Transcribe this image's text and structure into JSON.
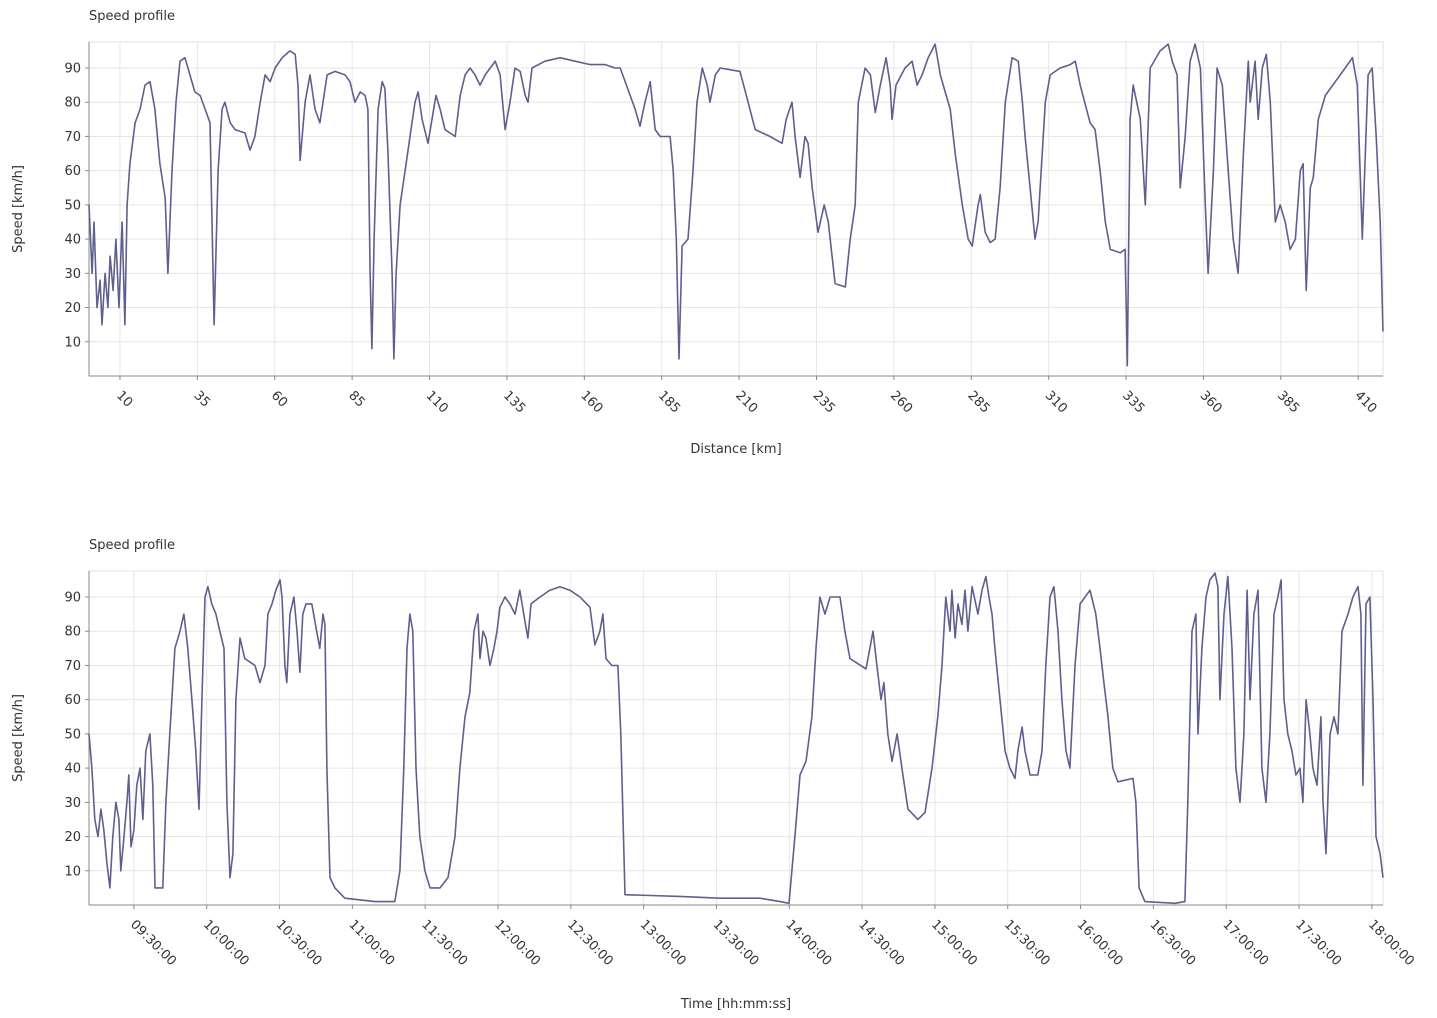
{
  "chart_data": [
    {
      "type": "line",
      "title": "Speed profile",
      "x_label": "Distance [km]",
      "y_label": "Speed [km/h]",
      "color": "#5f5f8f",
      "grid": true,
      "xlim": [
        0,
        418
      ],
      "ylim": [
        0,
        97.6
      ],
      "xticks": [
        10,
        35,
        60,
        85,
        110,
        135,
        160,
        185,
        210,
        235,
        260,
        285,
        310,
        335,
        360,
        385,
        410
      ],
      "yticks": [
        10,
        20,
        30,
        40,
        50,
        60,
        70,
        80,
        90
      ],
      "x": [
        0,
        1.0,
        1.6,
        2.6,
        3.6,
        4.2,
        5.2,
        6.1,
        6.8,
        7.8,
        8.7,
        9.7,
        10.7,
        11.6,
        12.3,
        13.2,
        14.9,
        16.5,
        18.1,
        19.7,
        21.3,
        22.9,
        24.6,
        25.5,
        26.8,
        28.1,
        29.4,
        31.0,
        32.6,
        34.2,
        35.9,
        37.5,
        39.1,
        40.4,
        41.7,
        43.0,
        43.9,
        45.6,
        47.2,
        50.4,
        52.0,
        53.6,
        55.3,
        56.9,
        58.5,
        60.1,
        62.4,
        64.9,
        66.6,
        67.5,
        68.2,
        69.8,
        71.4,
        73.0,
        74.6,
        76.9,
        79.5,
        82.7,
        84.3,
        85.9,
        87.6,
        89.2,
        90.1,
        90.8,
        91.4,
        92.1,
        93.4,
        94.7,
        95.6,
        96.6,
        97.9,
        98.5,
        99.2,
        100.5,
        102.1,
        103.7,
        105.3,
        106.3,
        107.6,
        109.5,
        110.8,
        112.1,
        113.4,
        115.0,
        118.3,
        119.9,
        121.5,
        123.1,
        124.7,
        126.3,
        128.0,
        129.6,
        131.2,
        132.8,
        134.4,
        136.0,
        137.6,
        139.3,
        140.9,
        141.8,
        143.1,
        147.3,
        152.2,
        157.0,
        161.9,
        166.7,
        169.9,
        171.6,
        176.4,
        178.0,
        179.6,
        181.3,
        182.9,
        184.5,
        187.7,
        188.7,
        189.7,
        190.6,
        191.6,
        193.5,
        195.1,
        196.4,
        198.1,
        199.7,
        200.6,
        202.3,
        203.9,
        210.3,
        212.9,
        215.2,
        220.0,
        223.9,
        225.2,
        227.1,
        228.1,
        229.7,
        231.3,
        232.3,
        233.6,
        235.5,
        237.5,
        238.8,
        241.0,
        244.3,
        245.9,
        247.5,
        248.5,
        250.7,
        252.4,
        254.0,
        255.6,
        257.5,
        258.8,
        259.4,
        260.7,
        263.6,
        265.9,
        267.5,
        269.1,
        271.1,
        273.3,
        275.0,
        276.9,
        278.2,
        279.8,
        282.1,
        284.0,
        285.3,
        287.2,
        287.9,
        289.5,
        291.1,
        292.7,
        294.3,
        296.0,
        298.2,
        300.2,
        301.5,
        302.4,
        304.0,
        305.6,
        306.6,
        308.9,
        310.5,
        313.7,
        317.0,
        318.6,
        320.2,
        323.4,
        325.0,
        326.6,
        328.3,
        329.9,
        333.1,
        334.7,
        335.4,
        336.3,
        337.3,
        339.6,
        341.2,
        342.8,
        346.0,
        348.6,
        349.9,
        351.5,
        352.5,
        354.1,
        355.7,
        357.3,
        359.0,
        360.6,
        361.5,
        363.2,
        364.4,
        366.1,
        368.0,
        369.6,
        371.2,
        372.9,
        374.5,
        375.1,
        376.7,
        377.7,
        379.0,
        380.3,
        381.6,
        383.2,
        384.8,
        386.4,
        388.0,
        389.7,
        391.3,
        392.2,
        393.2,
        394.5,
        395.5,
        397.1,
        399.4,
        402.6,
        405.8,
        408.1,
        409.7,
        411.3,
        413.2,
        414.5,
        415.8,
        417.1,
        418
      ],
      "values": [
        50,
        30,
        45,
        20,
        28,
        15,
        30,
        20,
        35,
        25,
        40,
        20,
        45,
        15,
        50,
        62,
        74,
        78,
        85,
        86,
        78,
        62,
        52,
        30,
        60,
        80,
        92,
        93,
        88,
        83,
        82,
        78,
        74,
        15,
        60,
        78,
        80,
        74,
        72,
        71,
        66,
        70,
        80,
        88,
        86,
        90,
        93,
        95,
        94,
        85,
        63,
        80,
        88,
        78,
        74,
        88,
        89,
        88,
        86,
        80,
        83,
        82,
        78,
        30,
        8,
        40,
        78,
        86,
        84,
        65,
        30,
        5,
        30,
        50,
        60,
        70,
        80,
        83,
        75,
        68,
        75,
        82,
        78,
        72,
        70,
        82,
        88,
        90,
        88,
        85,
        88,
        90,
        92,
        88,
        72,
        80,
        90,
        89,
        82,
        80,
        90,
        92,
        93,
        92,
        91,
        91,
        90,
        90,
        78,
        73,
        80,
        86,
        72,
        70,
        70,
        60,
        40,
        5,
        38,
        40,
        60,
        80,
        90,
        85,
        80,
        88,
        90,
        89,
        80,
        72,
        70,
        68,
        75,
        80,
        70,
        58,
        70,
        68,
        55,
        42,
        50,
        45,
        27,
        26,
        40,
        50,
        80,
        90,
        88,
        77,
        85,
        93,
        85,
        75,
        85,
        90,
        92,
        85,
        88,
        93,
        97,
        88,
        82,
        78,
        65,
        50,
        40,
        38,
        50,
        53,
        42,
        39,
        40,
        55,
        80,
        93,
        92,
        80,
        70,
        55,
        40,
        45,
        80,
        88,
        90,
        91,
        92,
        85,
        74,
        72,
        60,
        45,
        37,
        36,
        37,
        3,
        75,
        85,
        75,
        50,
        90,
        95,
        97,
        92,
        88,
        55,
        70,
        92,
        97,
        90,
        50,
        30,
        60,
        90,
        85,
        60,
        40,
        30,
        65,
        92,
        80,
        92,
        75,
        90,
        94,
        80,
        45,
        50,
        45,
        37,
        40,
        60,
        62,
        25,
        55,
        58,
        75,
        82,
        86,
        90,
        93,
        85,
        40,
        88,
        90,
        70,
        45,
        13
      ]
    },
    {
      "type": "line",
      "title": "Speed profile",
      "x_label": "Time  [hh:mm:ss]",
      "y_label": "Speed [km/h]",
      "color": "#5f5f8f",
      "grid": true,
      "xlim": [
        "09:11:30",
        "18:04:36"
      ],
      "ylim": [
        0,
        97.6
      ],
      "xticks": [
        "09:30:00",
        "10:00:00",
        "10:30:00",
        "11:00:00",
        "11:30:00",
        "12:00:00",
        "12:30:00",
        "13:00:00",
        "13:30:00",
        "14:00:00",
        "14:30:00",
        "15:00:00",
        "15:30:00",
        "16:00:00",
        "16:30:00",
        "17:00:00",
        "17:30:00",
        "18:00:00"
      ],
      "yticks": [
        10,
        20,
        30,
        40,
        50,
        60,
        70,
        80,
        90
      ],
      "x": [
        "09:11:30",
        "09:12:42",
        "09:13:54",
        "09:15:12",
        "09:16:24",
        "09:17:36",
        "09:18:54",
        "09:20:06",
        "09:21:18",
        "09:22:36",
        "09:23:48",
        "09:24:36",
        "09:25:54",
        "09:27:06",
        "09:27:54",
        "09:28:48",
        "09:30:00",
        "09:31:12",
        "09:32:30",
        "09:33:42",
        "09:34:54",
        "09:36:36",
        "09:37:48",
        "09:38:42",
        "09:41:54",
        "09:43:12",
        "09:44:48",
        "09:46:54",
        "09:49:00",
        "09:50:36",
        "09:52:12",
        "09:53:54",
        "09:55:30",
        "09:56:48",
        "09:58:00",
        "09:59:18",
        "10:00:30",
        "10:02:06",
        "10:03:48",
        "10:05:24",
        "10:07:06",
        "10:08:18",
        "10:09:36",
        "10:10:48",
        "10:12:00",
        "10:13:42",
        "10:15:42",
        "10:19:54",
        "10:21:54",
        "10:24:00",
        "10:25:12",
        "10:26:54",
        "10:28:30",
        "10:30:12",
        "10:31:00",
        "10:32:12",
        "10:33:00",
        "10:34:18",
        "10:35:54",
        "10:37:12",
        "10:38:24",
        "10:39:36",
        "10:40:54",
        "10:43:18",
        "10:45:48",
        "10:46:36",
        "10:47:54",
        "10:48:42",
        "10:49:30",
        "10:50:48",
        "10:52:48",
        "10:56:54",
        "11:09:18",
        "11:17:30",
        "11:19:36",
        "11:21:12",
        "11:22:30",
        "11:23:42",
        "11:24:54",
        "11:26:12",
        "11:27:48",
        "11:29:54",
        "11:32:00",
        "11:36:06",
        "11:39:24",
        "11:42:18",
        "11:44:18",
        "11:46:24",
        "11:48:24",
        "11:50:06",
        "11:51:42",
        "11:52:36",
        "11:53:48",
        "11:55:00",
        "11:56:42",
        "11:58:18",
        "11:59:36",
        "12:00:48",
        "12:02:54",
        "12:04:54",
        "12:07:00",
        "12:09:00",
        "12:11:06",
        "12:12:18",
        "12:13:36",
        "12:17:18",
        "12:21:24",
        "12:25:30",
        "12:29:36",
        "12:33:48",
        "12:37:54",
        "12:39:54",
        "12:42:00",
        "12:43:12",
        "12:44:30",
        "12:46:54",
        "12:49:24",
        "12:50:36",
        "12:52:18",
        "13:14:54",
        "13:31:24",
        "13:47:54",
        "13:56:12",
        "13:59:54",
        "14:02:18",
        "14:04:24",
        "14:06:54",
        "14:09:18",
        "14:11:00",
        "14:12:36",
        "14:14:42",
        "14:16:48",
        "14:20:54",
        "14:22:54",
        "14:25:00",
        "14:31:36",
        "14:33:12",
        "14:34:30",
        "14:36:06",
        "14:37:48",
        "14:39:00",
        "14:40:36",
        "14:42:18",
        "14:44:24",
        "14:46:24",
        "14:48:54",
        "14:53:00",
        "14:55:54",
        "14:58:48",
        "15:01:12",
        "15:02:54",
        "15:04:30",
        "15:06:12",
        "15:07:00",
        "15:08:18",
        "15:09:30",
        "15:11:06",
        "15:12:24",
        "15:13:36",
        "15:15:18",
        "15:17:42",
        "15:19:24",
        "15:21:00",
        "15:22:18",
        "15:23:30",
        "15:24:42",
        "15:26:48",
        "15:28:54",
        "15:30:54",
        "15:33:00",
        "15:34:12",
        "15:35:54",
        "15:37:06",
        "15:39:12",
        "15:42:24",
        "15:44:06",
        "15:45:42",
        "15:47:24",
        "15:49:00",
        "15:50:42",
        "15:52:18",
        "15:54:00",
        "15:55:36",
        "15:57:42",
        "15:59:48",
        "16:03:54",
        "16:06:18",
        "16:08:00",
        "16:09:36",
        "16:11:18",
        "16:13:18",
        "16:15:24",
        "16:21:36",
        "16:22:48",
        "16:24:06",
        "16:26:30",
        "16:38:54",
        "16:43:00",
        "16:44:12",
        "16:45:54",
        "16:47:30",
        "16:48:24",
        "16:50:00",
        "16:51:42",
        "16:53:18",
        "16:55:24",
        "16:56:36",
        "16:57:24",
        "16:59:06",
        "17:00:42",
        "17:02:24",
        "17:04:00",
        "17:05:42",
        "17:07:18",
        "17:08:36",
        "17:09:48",
        "17:11:24",
        "17:13:06",
        "17:14:42",
        "17:16:24",
        "17:18:00",
        "17:19:42",
        "17:21:18",
        "17:22:36",
        "17:23:48",
        "17:25:24",
        "17:27:06",
        "17:28:42",
        "17:30:24",
        "17:31:36",
        "17:32:54",
        "17:34:30",
        "17:35:42",
        "17:37:24",
        "17:39:00",
        "17:39:54",
        "17:41:06",
        "17:42:48",
        "17:44:24",
        "17:46:00",
        "17:47:42",
        "17:50:12",
        "17:52:12",
        "17:54:18",
        "17:55:30",
        "17:56:18",
        "17:57:36",
        "17:59:12",
        "18:00:30",
        "18:01:42",
        "18:03:24",
        "18:04:36"
      ],
      "values": [
        50,
        40,
        25,
        20,
        28,
        22,
        12,
        5,
        20,
        30,
        25,
        10,
        20,
        30,
        38,
        17,
        22,
        35,
        40,
        25,
        45,
        50,
        35,
        5,
        5,
        30,
        50,
        75,
        80,
        85,
        75,
        60,
        45,
        28,
        60,
        90,
        93,
        88,
        85,
        80,
        75,
        30,
        8,
        15,
        60,
        78,
        72,
        70,
        65,
        70,
        85,
        88,
        92,
        95,
        90,
        70,
        65,
        85,
        90,
        80,
        68,
        85,
        88,
        88,
        78,
        75,
        85,
        82,
        40,
        8,
        5,
        2,
        1,
        1,
        10,
        40,
        75,
        85,
        80,
        40,
        20,
        10,
        5,
        5,
        8,
        20,
        40,
        55,
        62,
        80,
        85,
        72,
        80,
        78,
        70,
        75,
        80,
        87,
        90,
        88,
        85,
        92,
        83,
        78,
        88,
        90,
        92,
        93,
        92,
        90,
        87,
        76,
        80,
        85,
        72,
        70,
        70,
        50,
        3,
        2.5,
        2,
        2,
        1,
        0.5,
        20,
        38,
        42,
        55,
        75,
        90,
        85,
        90,
        90,
        80,
        72,
        69,
        75,
        80,
        70,
        60,
        65,
        50,
        42,
        50,
        40,
        28,
        25,
        27,
        40,
        55,
        70,
        90,
        80,
        92,
        78,
        88,
        82,
        92,
        80,
        93,
        85,
        92,
        96,
        90,
        85,
        75,
        60,
        45,
        40,
        37,
        45,
        52,
        45,
        38,
        38,
        45,
        70,
        90,
        93,
        80,
        60,
        45,
        40,
        70,
        88,
        92,
        85,
        75,
        65,
        55,
        40,
        36,
        37,
        30,
        5,
        1,
        0.5,
        1,
        30,
        80,
        85,
        50,
        75,
        90,
        95,
        97,
        93,
        60,
        85,
        96,
        75,
        40,
        30,
        50,
        92,
        60,
        85,
        92,
        40,
        30,
        50,
        85,
        90,
        95,
        60,
        50,
        45,
        38,
        40,
        30,
        60,
        50,
        40,
        35,
        55,
        30,
        15,
        50,
        55,
        50,
        80,
        85,
        90,
        93,
        85,
        35,
        88,
        90,
        60,
        20,
        15,
        8
      ]
    }
  ]
}
